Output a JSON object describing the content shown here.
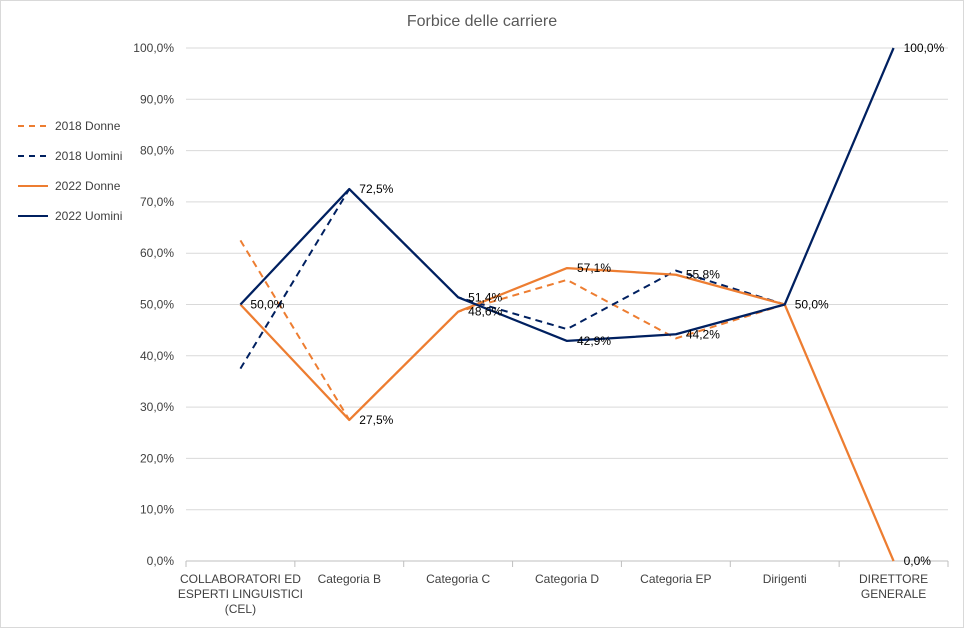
{
  "chart_data": {
    "type": "line",
    "title": "Forbice delle carriere",
    "xlabel": "",
    "ylabel": "",
    "categories": [
      [
        "COLLABORATORI ED",
        "ESPERTI LINGUISTICI",
        "(CEL)"
      ],
      [
        "Categoria B"
      ],
      [
        "Categoria C"
      ],
      [
        "Categoria D"
      ],
      [
        "Categoria EP"
      ],
      [
        "Dirigenti"
      ],
      [
        "DIRETTORE",
        "GENERALE"
      ]
    ],
    "ylim": [
      0,
      100
    ],
    "yticks": [
      0,
      10,
      20,
      30,
      40,
      50,
      60,
      70,
      80,
      90,
      100
    ],
    "ytick_labels": [
      "0,0%",
      "10,0%",
      "20,0%",
      "30,0%",
      "40,0%",
      "50,0%",
      "60,0%",
      "70,0%",
      "80,0%",
      "90,0%",
      "100,0%"
    ],
    "grid": true,
    "legend_position": "left",
    "series": [
      {
        "name": "2018 Donne",
        "color": "#ED7D31",
        "dash": true,
        "values": [
          62.5,
          27.5,
          48.6,
          54.8,
          43.4,
          50.0,
          null
        ]
      },
      {
        "name": "2018 Uomini",
        "color": "#002060",
        "dash": true,
        "values": [
          37.5,
          72.5,
          51.4,
          45.2,
          56.6,
          50.0,
          null
        ]
      },
      {
        "name": "2022 Donne",
        "color": "#ED7D31",
        "dash": false,
        "values": [
          50.0,
          27.5,
          48.6,
          57.1,
          55.8,
          50.0,
          0.0
        ]
      },
      {
        "name": "2022 Uomini",
        "color": "#002060",
        "dash": false,
        "values": [
          50.0,
          72.5,
          51.4,
          42.9,
          44.2,
          50.0,
          100.0
        ]
      }
    ],
    "data_labels": [
      {
        "category_index": 0,
        "value": 50.0,
        "text": "50,0%"
      },
      {
        "category_index": 1,
        "value": 72.5,
        "text": "72,5%"
      },
      {
        "category_index": 1,
        "value": 27.5,
        "text": "27,5%"
      },
      {
        "category_index": 2,
        "value": 51.4,
        "text": "51,4%"
      },
      {
        "category_index": 2,
        "value": 48.6,
        "text": "48,6%"
      },
      {
        "category_index": 3,
        "value": 57.1,
        "text": "57,1%"
      },
      {
        "category_index": 3,
        "value": 42.9,
        "text": "42,9%"
      },
      {
        "category_index": 4,
        "value": 55.8,
        "text": "55,8%"
      },
      {
        "category_index": 4,
        "value": 44.2,
        "text": "44,2%"
      },
      {
        "category_index": 5,
        "value": 50.0,
        "text": "50,0%"
      },
      {
        "category_index": 6,
        "value": 100.0,
        "text": "100,0%"
      },
      {
        "category_index": 6,
        "value": 0.0,
        "text": "0,0%"
      }
    ]
  }
}
